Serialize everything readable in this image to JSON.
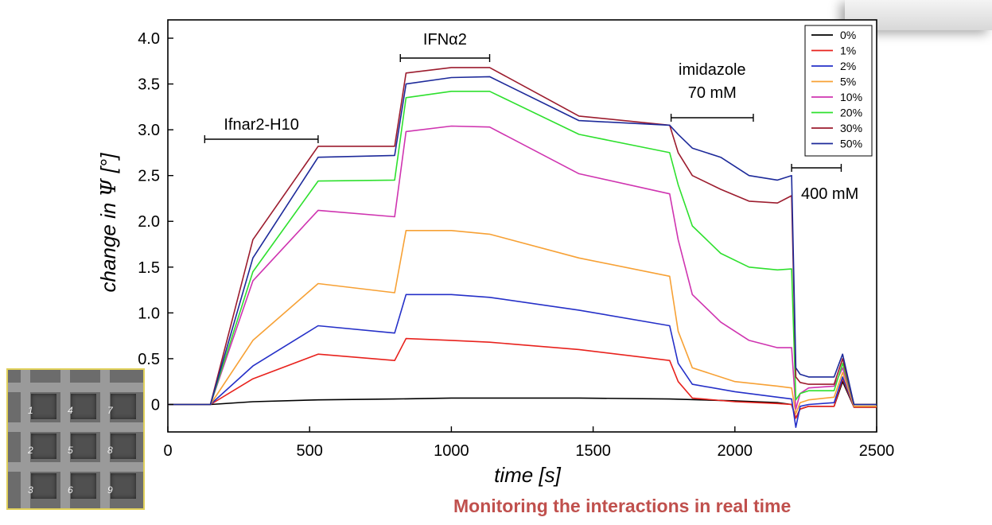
{
  "caption": "Monitoring the interactions in real time",
  "inset": {
    "labels": [
      "1",
      "4",
      "7",
      "2",
      "5",
      "8",
      "3",
      "6",
      "9"
    ]
  },
  "chart_data": {
    "type": "line",
    "xlabel": "time [s]",
    "ylabel_prefix": "change in ",
    "ylabel_symbol": "Ψ",
    "ylabel_suffix": " [°]",
    "xlim": [
      0,
      2500
    ],
    "ylim": [
      -0.3,
      4.2
    ],
    "xticks": [
      0,
      500,
      1000,
      1500,
      2000,
      2500
    ],
    "yticks": [
      0,
      0.5,
      1.0,
      1.5,
      2.0,
      2.5,
      3.0,
      3.5,
      4.0
    ],
    "ytick_labels": [
      "0",
      "0.5",
      "1.0",
      "1.5",
      "2.0",
      "2.5",
      "3.0",
      "3.5",
      "4.0"
    ],
    "legend_position": "top-right",
    "annotations": [
      {
        "text": "Ifnar2-H10",
        "x_start": 130,
        "x_end": 530
      },
      {
        "text": "IFNα2",
        "x_start": 820,
        "x_end": 1135
      },
      {
        "text": "imidazole",
        "text2": "70 mM",
        "x_start": 1775,
        "x_end": 2065
      },
      {
        "text": "400 mM",
        "x_start": 2200,
        "x_end": 2375
      }
    ],
    "series": [
      {
        "name": "0%",
        "color": "#000000",
        "x": [
          0,
          150,
          300,
          530,
          800,
          1000,
          1150,
          1450,
          1770,
          2000,
          2150,
          2200,
          2215,
          2230,
          2260,
          2350,
          2380,
          2420,
          2500
        ],
        "y": [
          0,
          0,
          0.03,
          0.05,
          0.06,
          0.07,
          0.07,
          0.07,
          0.06,
          0.04,
          0.02,
          0.0,
          -0.15,
          -0.05,
          -0.02,
          -0.02,
          0.25,
          -0.03,
          -0.03
        ]
      },
      {
        "name": "1%",
        "color": "#e8221d",
        "x": [
          0,
          150,
          300,
          530,
          800,
          840,
          1000,
          1135,
          1450,
          1770,
          1800,
          1850,
          2000,
          2150,
          2200,
          2215,
          2230,
          2260,
          2350,
          2380,
          2420,
          2500
        ],
        "y": [
          0,
          0,
          0.28,
          0.55,
          0.48,
          0.72,
          0.7,
          0.68,
          0.6,
          0.48,
          0.25,
          0.07,
          0.03,
          0.01,
          0.0,
          -0.15,
          -0.05,
          -0.02,
          -0.02,
          0.28,
          -0.03,
          -0.03
        ]
      },
      {
        "name": "2%",
        "color": "#2530c8",
        "x": [
          0,
          150,
          300,
          530,
          800,
          840,
          1000,
          1135,
          1450,
          1770,
          1800,
          1850,
          2000,
          2150,
          2200,
          2215,
          2230,
          2260,
          2350,
          2380,
          2420,
          2500
        ],
        "y": [
          0,
          0,
          0.42,
          0.86,
          0.78,
          1.2,
          1.2,
          1.17,
          1.03,
          0.86,
          0.45,
          0.22,
          0.14,
          0.08,
          0.06,
          -0.25,
          -0.02,
          0.0,
          0.02,
          0.3,
          -0.02,
          -0.02
        ]
      },
      {
        "name": "5%",
        "color": "#f7a135",
        "x": [
          0,
          150,
          300,
          530,
          800,
          840,
          1000,
          1135,
          1450,
          1770,
          1800,
          1850,
          2000,
          2150,
          2200,
          2215,
          2230,
          2260,
          2350,
          2380,
          2420,
          2500
        ],
        "y": [
          0,
          0,
          0.7,
          1.32,
          1.22,
          1.9,
          1.9,
          1.86,
          1.6,
          1.4,
          0.8,
          0.4,
          0.25,
          0.2,
          0.18,
          -0.1,
          0.02,
          0.05,
          0.08,
          0.35,
          -0.02,
          -0.02
        ]
      },
      {
        "name": "10%",
        "color": "#cf34b0",
        "x": [
          0,
          150,
          300,
          530,
          800,
          840,
          1000,
          1135,
          1450,
          1770,
          1800,
          1850,
          1950,
          2050,
          2150,
          2200,
          2215,
          2230,
          2260,
          2350,
          2380,
          2420,
          2500
        ],
        "y": [
          0,
          0,
          1.35,
          2.12,
          2.05,
          2.98,
          3.04,
          3.03,
          2.52,
          2.3,
          1.8,
          1.2,
          0.9,
          0.7,
          0.62,
          0.62,
          -0.05,
          0.12,
          0.18,
          0.2,
          0.4,
          0.0,
          0.0
        ]
      },
      {
        "name": "20%",
        "color": "#2ee02e",
        "x": [
          0,
          150,
          300,
          530,
          800,
          840,
          1000,
          1135,
          1450,
          1770,
          1800,
          1850,
          1950,
          2050,
          2150,
          2200,
          2215,
          2230,
          2260,
          2350,
          2380,
          2420,
          2500
        ],
        "y": [
          0,
          0,
          1.45,
          2.44,
          2.45,
          3.35,
          3.42,
          3.42,
          2.95,
          2.75,
          2.4,
          1.95,
          1.65,
          1.5,
          1.47,
          1.48,
          0.05,
          0.12,
          0.15,
          0.15,
          0.45,
          0.0,
          0.0
        ]
      },
      {
        "name": "30%",
        "color": "#9c1c2e",
        "x": [
          0,
          150,
          300,
          530,
          800,
          840,
          1000,
          1135,
          1450,
          1770,
          1800,
          1850,
          1950,
          2050,
          2150,
          2200,
          2215,
          2230,
          2260,
          2350,
          2380,
          2420,
          2500
        ],
        "y": [
          0,
          0,
          1.8,
          2.82,
          2.82,
          3.62,
          3.68,
          3.68,
          3.15,
          3.05,
          2.75,
          2.5,
          2.35,
          2.22,
          2.2,
          2.28,
          0.3,
          0.24,
          0.22,
          0.22,
          0.5,
          0.0,
          0.0
        ]
      },
      {
        "name": "50%",
        "color": "#1d2a9a",
        "x": [
          0,
          150,
          300,
          530,
          800,
          840,
          1000,
          1135,
          1450,
          1770,
          1800,
          1850,
          1950,
          2050,
          2150,
          2200,
          2215,
          2230,
          2260,
          2350,
          2380,
          2420,
          2500
        ],
        "y": [
          0,
          0,
          1.6,
          2.7,
          2.72,
          3.5,
          3.57,
          3.58,
          3.1,
          3.05,
          2.95,
          2.8,
          2.7,
          2.5,
          2.45,
          2.5,
          0.4,
          0.33,
          0.3,
          0.3,
          0.55,
          0.0,
          0.0
        ]
      }
    ]
  }
}
